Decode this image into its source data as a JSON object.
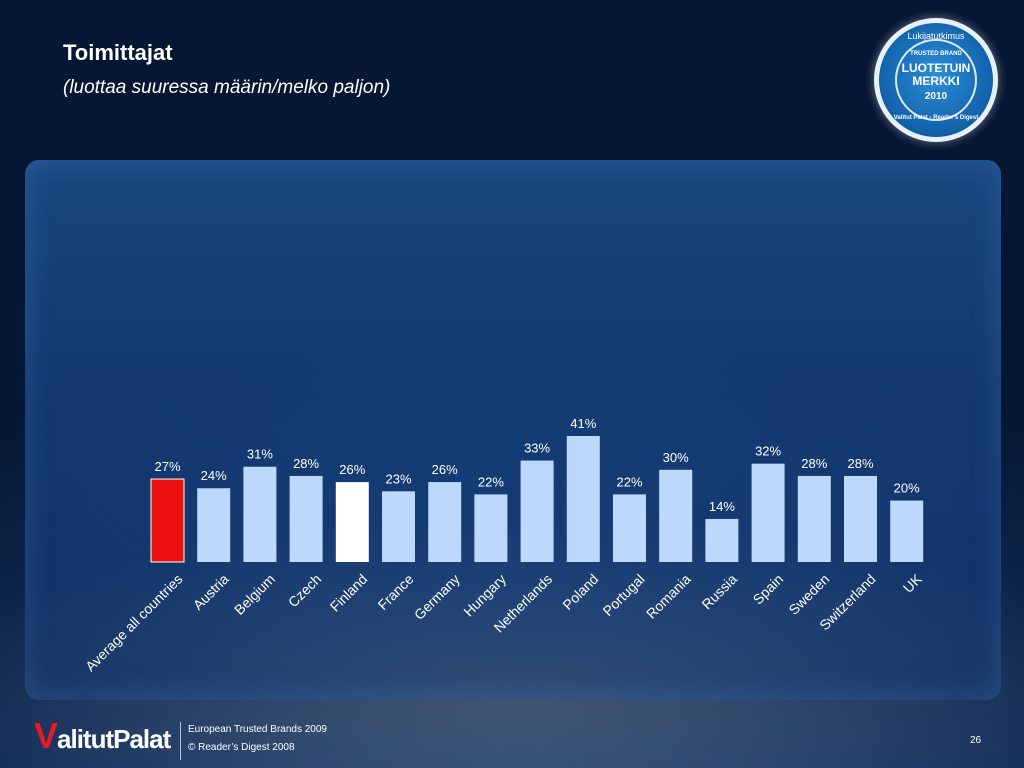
{
  "slide": {
    "title": "Toimittajat",
    "subtitle": "(luottaa suuressa määrin/melko paljon)",
    "footer_line1": "European Trusted Brands 2009",
    "footer_line2": "© Reader’s Digest 2008",
    "page_number": "26"
  },
  "logo": {
    "brand_first": "V",
    "brand_rest": "alitutPalat"
  },
  "badge": {
    "top_text": "Lukijatutkimus",
    "small_text": "TRUSTED BRAND",
    "main_line1": "LUOTETUIN",
    "main_line2": "MERKKI",
    "year": "2010",
    "bottom_text": "Valitut Palat - Reader's Digest"
  },
  "colors": {
    "bar_default": "#bcd9fb",
    "bar_highlight_red": "#ee1111",
    "bar_highlight_white": "#ffffff",
    "label_text": "#ffffff",
    "value_text": "#ffffff"
  },
  "chart_data": {
    "type": "bar",
    "categories": [
      "Average all countries",
      "Austria",
      "Belgium",
      "Czech",
      "Finland",
      "France",
      "Germany",
      "Hungary",
      "Netherlands",
      "Poland",
      "Portugal",
      "Romania",
      "Russia",
      "Spain",
      "Sweden",
      "Switzerland",
      "UK"
    ],
    "values": [
      27,
      24,
      31,
      28,
      26,
      23,
      26,
      22,
      33,
      41,
      22,
      30,
      14,
      32,
      28,
      28,
      20
    ],
    "value_labels": [
      "27%",
      "24%",
      "31%",
      "28%",
      "26%",
      "23%",
      "26%",
      "22%",
      "33%",
      "41%",
      "22%",
      "30%",
      "14%",
      "32%",
      "28%",
      "28%",
      "20%"
    ],
    "highlight": {
      "Average all countries": "red",
      "Finland": "white"
    },
    "ylim": [
      0,
      41
    ],
    "grid": false,
    "legend": "none"
  }
}
